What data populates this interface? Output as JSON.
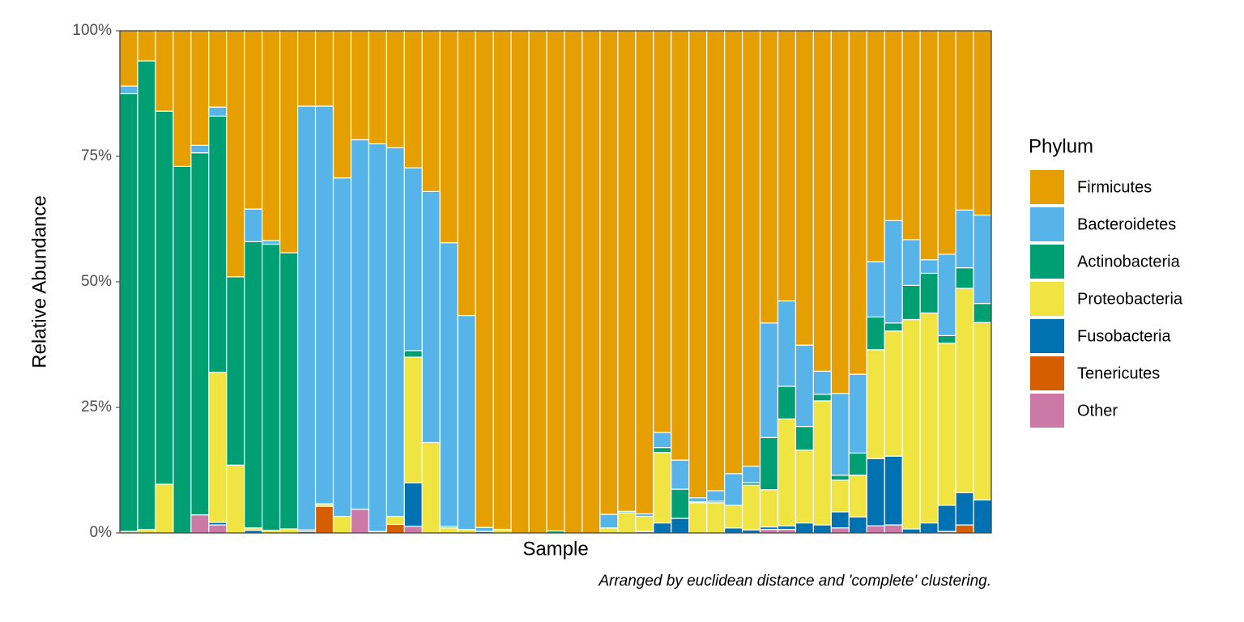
{
  "chart_data": {
    "type": "stacked-bar",
    "x_label": "Sample",
    "y_label": "Relative Abundance",
    "caption": "Arranged by euclidean distance and 'complete' clustering.",
    "legend_title": "Phylum",
    "categories": [
      null,
      null,
      null,
      null,
      null,
      null,
      null,
      null,
      null,
      null,
      null,
      null,
      null,
      null,
      null,
      null,
      null,
      null,
      null,
      null,
      null,
      null,
      null,
      null,
      null,
      null,
      null,
      null,
      null,
      null,
      null,
      null,
      null,
      null,
      null,
      null,
      null,
      null,
      null,
      null,
      null,
      null,
      null,
      null,
      null,
      null,
      null,
      null,
      null
    ],
    "ylim": [
      0,
      100
    ],
    "yticks": [
      {
        "value": 0,
        "label": "0%"
      },
      {
        "value": 25,
        "label": "25%"
      },
      {
        "value": 50,
        "label": "50%"
      },
      {
        "value": 75,
        "label": "75%"
      },
      {
        "value": 100,
        "label": "100%"
      }
    ],
    "series": [
      {
        "name": "Firmicutes",
        "color": "#E69F00",
        "values": [
          11,
          6,
          16,
          27,
          22.8,
          15.2,
          49,
          35.5,
          41.8,
          44.2,
          15,
          15,
          29.3,
          21.7,
          22.5,
          23.3,
          27.3,
          32,
          42.2,
          56.7,
          98.9,
          99.3,
          100,
          100,
          99.6,
          100,
          100,
          96.3,
          95.7,
          96.2,
          80,
          85.5,
          93,
          91.6,
          88.2,
          86.7,
          58.2,
          53.8,
          62.6,
          67.8,
          72.2,
          68.4,
          46,
          37.8,
          41.6,
          45.6,
          44.5,
          35.7,
          36.7
        ]
      },
      {
        "name": "Bacteroidetes",
        "color": "#56B4E9",
        "values": [
          1.5,
          0,
          0,
          0,
          1.5,
          1.8,
          0,
          6.5,
          0.7,
          0,
          84.4,
          79.2,
          67.4,
          73.6,
          77.2,
          73.4,
          36.4,
          50,
          56.5,
          42.6,
          0.8,
          0,
          0,
          0,
          0,
          0,
          0,
          2.7,
          0.3,
          0.5,
          3,
          5.8,
          0.8,
          2.1,
          6.3,
          3.3,
          22.8,
          17,
          16.2,
          4.6,
          16.3,
          15.7,
          11,
          20.4,
          9.1,
          2.7,
          16.2,
          11.5,
          17.6
        ]
      },
      {
        "name": "Actinobacteria",
        "color": "#009E73",
        "values": [
          87.2,
          93.3,
          74.3,
          73,
          72.1,
          51,
          37.5,
          57,
          57,
          55,
          0.3,
          0,
          0,
          0,
          0,
          0,
          1.3,
          0,
          0.3,
          0,
          0,
          0,
          0,
          0,
          0.4,
          0,
          0,
          0,
          0,
          0,
          1,
          5.8,
          0.2,
          0.3,
          0,
          0.5,
          10.4,
          6.5,
          4.7,
          1.3,
          1,
          4.4,
          6.5,
          1.6,
          6.8,
          7.9,
          1.5,
          4.1,
          3.8
        ]
      },
      {
        "name": "Proteobacteria",
        "color": "#F0E442",
        "values": [
          0.3,
          0.7,
          9.7,
          0,
          0,
          29.9,
          13.5,
          0.5,
          0.5,
          0.8,
          0,
          0.5,
          3.3,
          0,
          0.3,
          1.6,
          25,
          18,
          1,
          0.7,
          0,
          0.7,
          0,
          0,
          0,
          0,
          0,
          1,
          4,
          3,
          14,
          0,
          6,
          6,
          4.5,
          8.9,
          7.4,
          21.3,
          14.5,
          24.7,
          6.3,
          8.3,
          21.7,
          24.9,
          41.7,
          41.8,
          32.3,
          40.7,
          35.3
        ]
      },
      {
        "name": "Fusobacteria",
        "color": "#0072B2",
        "values": [
          0,
          0,
          0,
          0,
          0,
          0.5,
          0,
          0.5,
          0,
          0,
          0.3,
          0,
          0,
          0,
          0,
          0,
          8.7,
          0,
          0,
          0,
          0.3,
          0,
          0,
          0,
          0,
          0,
          0,
          0,
          0,
          0,
          2,
          2.9,
          0,
          0,
          1,
          0.6,
          0.5,
          0.7,
          2,
          1.6,
          3.2,
          3.2,
          13.4,
          13.7,
          0.8,
          2,
          5.2,
          6.4,
          6.6
        ]
      },
      {
        "name": "Tenericutes",
        "color": "#D55E00",
        "values": [
          0,
          0,
          0,
          0,
          0,
          0,
          0,
          0,
          0,
          0,
          0,
          5.3,
          0,
          0,
          0,
          1.7,
          0,
          0,
          0,
          0,
          0,
          0,
          0,
          0,
          0,
          0,
          0,
          0,
          0,
          0,
          0,
          0,
          0,
          0,
          0,
          0,
          0,
          0,
          0,
          0,
          0,
          0,
          0,
          0,
          0,
          0,
          0,
          1.6,
          0
        ]
      },
      {
        "name": "Other",
        "color": "#CC79A7",
        "values": [
          0,
          0,
          0,
          0,
          3.6,
          1.6,
          0,
          0,
          0,
          0,
          0,
          0,
          0,
          4.7,
          0,
          0,
          1.3,
          0,
          0,
          0,
          0,
          0,
          0,
          0,
          0,
          0,
          0,
          0,
          0,
          0.3,
          0,
          0,
          0,
          0,
          0,
          0,
          0.7,
          0.7,
          0,
          0,
          1,
          0,
          1.4,
          1.6,
          0,
          0,
          0.3,
          0,
          0
        ]
      }
    ]
  }
}
